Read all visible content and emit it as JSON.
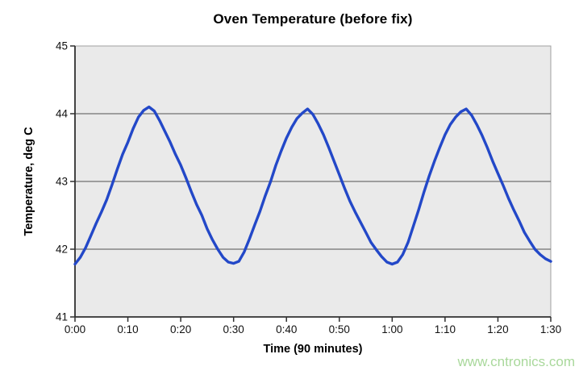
{
  "chart_data": {
    "type": "line",
    "title": "Oven Temperature (before fix)",
    "xlabel": "Time (90 minutes)",
    "ylabel": "Temperature, deg C",
    "ylim": [
      41,
      45
    ],
    "xlim_minutes": [
      0,
      90
    ],
    "y_ticks": [
      41,
      42,
      43,
      44,
      45
    ],
    "x_tick_minutes": [
      0,
      10,
      20,
      30,
      40,
      50,
      60,
      70,
      80,
      90
    ],
    "x_tick_labels": [
      "0:00",
      "0:10",
      "0:20",
      "0:30",
      "0:40",
      "0:50",
      "1:00",
      "1:10",
      "1:20",
      "1:30"
    ],
    "grid": "horizontal-only",
    "legend": "none",
    "colors": {
      "line": "#2348c8",
      "plot_bg": "#eaeaea",
      "gridline": "#707070",
      "axis": "#303030",
      "plot_border": "#a0a0a0"
    },
    "series": [
      {
        "name": "oven-temperature",
        "start_minute": 0,
        "sample_interval_minutes": 1,
        "values": [
          41.78,
          41.88,
          42.02,
          42.2,
          42.38,
          42.55,
          42.73,
          42.95,
          43.18,
          43.4,
          43.58,
          43.78,
          43.95,
          44.05,
          44.1,
          44.04,
          43.9,
          43.74,
          43.58,
          43.4,
          43.24,
          43.05,
          42.85,
          42.66,
          42.5,
          42.3,
          42.14,
          42.0,
          41.88,
          41.81,
          41.79,
          41.82,
          41.96,
          42.15,
          42.36,
          42.56,
          42.79,
          43.0,
          43.24,
          43.45,
          43.64,
          43.8,
          43.93,
          44.01,
          44.07,
          43.99,
          43.85,
          43.69,
          43.5,
          43.3,
          43.1,
          42.9,
          42.71,
          42.55,
          42.4,
          42.25,
          42.1,
          41.99,
          41.89,
          41.81,
          41.78,
          41.81,
          41.92,
          42.1,
          42.34,
          42.58,
          42.84,
          43.08,
          43.3,
          43.5,
          43.69,
          43.84,
          43.95,
          44.03,
          44.07,
          43.98,
          43.84,
          43.68,
          43.5,
          43.3,
          43.12,
          42.94,
          42.75,
          42.58,
          42.42,
          42.25,
          42.12,
          42.0,
          41.92,
          41.86,
          41.82
        ]
      }
    ]
  },
  "watermark": {
    "text": "www.cntronics.com",
    "color": "#a9d89b"
  }
}
